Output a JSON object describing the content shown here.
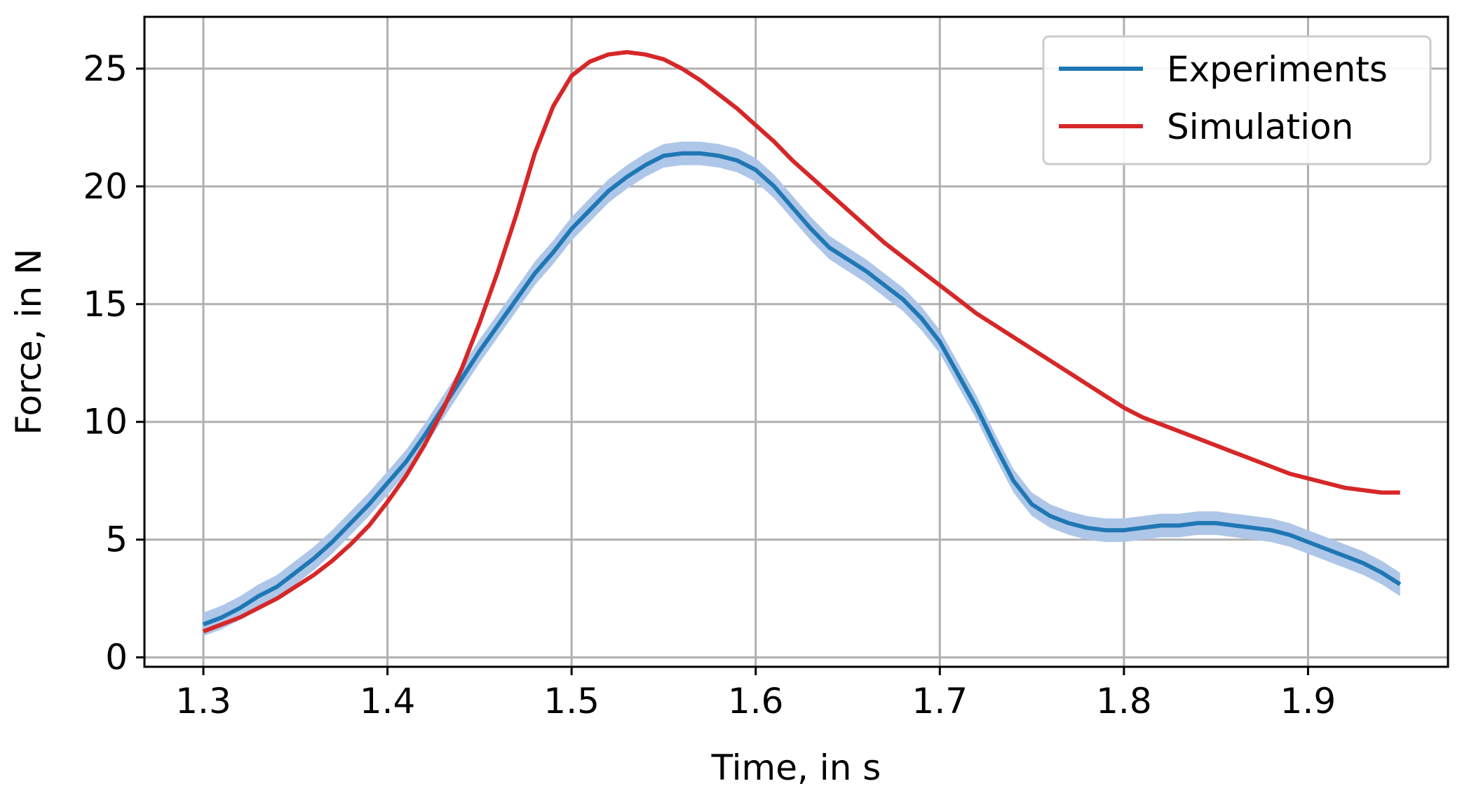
{
  "chart_data": {
    "type": "line",
    "title": "",
    "xlabel": "Time, in s",
    "ylabel": "Force, in N",
    "xlim": [
      1.268,
      1.976
    ],
    "ylim": [
      -0.4,
      27.2
    ],
    "xticks": [
      1.3,
      1.4,
      1.5,
      1.6,
      1.7,
      1.8,
      1.9
    ],
    "xtick_labels": [
      "1.3",
      "1.4",
      "1.5",
      "1.6",
      "1.7",
      "1.8",
      "1.9"
    ],
    "yticks": [
      0,
      5,
      10,
      15,
      20,
      25
    ],
    "ytick_labels": [
      "0",
      "5",
      "10",
      "15",
      "20",
      "25"
    ],
    "grid": true,
    "legend_position": "top-right",
    "series": [
      {
        "name": "Experiments",
        "color": "#1f77b4",
        "band_color": "#aec7e8",
        "band_halfwidth": 0.5,
        "x": [
          1.3,
          1.31,
          1.32,
          1.33,
          1.34,
          1.35,
          1.36,
          1.37,
          1.38,
          1.39,
          1.4,
          1.41,
          1.42,
          1.43,
          1.44,
          1.45,
          1.46,
          1.47,
          1.48,
          1.49,
          1.5,
          1.51,
          1.52,
          1.53,
          1.54,
          1.55,
          1.56,
          1.57,
          1.58,
          1.59,
          1.6,
          1.61,
          1.62,
          1.63,
          1.64,
          1.65,
          1.66,
          1.67,
          1.68,
          1.69,
          1.7,
          1.71,
          1.72,
          1.73,
          1.74,
          1.75,
          1.76,
          1.77,
          1.78,
          1.79,
          1.8,
          1.81,
          1.82,
          1.83,
          1.84,
          1.85,
          1.86,
          1.87,
          1.88,
          1.89,
          1.9,
          1.91,
          1.92,
          1.93,
          1.94,
          1.95
        ],
        "y": [
          1.4,
          1.7,
          2.1,
          2.6,
          3.0,
          3.6,
          4.2,
          4.9,
          5.7,
          6.5,
          7.4,
          8.3,
          9.4,
          10.6,
          11.8,
          13.0,
          14.1,
          15.2,
          16.3,
          17.2,
          18.2,
          19.0,
          19.8,
          20.4,
          20.9,
          21.3,
          21.4,
          21.4,
          21.3,
          21.1,
          20.7,
          20.0,
          19.1,
          18.2,
          17.4,
          16.9,
          16.4,
          15.8,
          15.2,
          14.4,
          13.4,
          12.0,
          10.6,
          9.0,
          7.5,
          6.5,
          6.0,
          5.7,
          5.5,
          5.4,
          5.4,
          5.5,
          5.6,
          5.6,
          5.7,
          5.7,
          5.6,
          5.5,
          5.4,
          5.2,
          4.9,
          4.6,
          4.3,
          4.0,
          3.6,
          3.1
        ]
      },
      {
        "name": "Simulation",
        "color": "#d62728",
        "x": [
          1.3,
          1.31,
          1.32,
          1.33,
          1.34,
          1.35,
          1.36,
          1.37,
          1.38,
          1.39,
          1.4,
          1.41,
          1.42,
          1.43,
          1.44,
          1.45,
          1.46,
          1.47,
          1.48,
          1.49,
          1.5,
          1.51,
          1.52,
          1.53,
          1.54,
          1.55,
          1.56,
          1.57,
          1.58,
          1.59,
          1.6,
          1.61,
          1.62,
          1.63,
          1.64,
          1.65,
          1.66,
          1.67,
          1.68,
          1.69,
          1.7,
          1.71,
          1.72,
          1.73,
          1.74,
          1.75,
          1.76,
          1.77,
          1.78,
          1.79,
          1.8,
          1.81,
          1.82,
          1.83,
          1.84,
          1.85,
          1.86,
          1.87,
          1.88,
          1.89,
          1.9,
          1.91,
          1.92,
          1.93,
          1.94,
          1.95
        ],
        "y": [
          1.1,
          1.4,
          1.7,
          2.1,
          2.5,
          3.0,
          3.5,
          4.1,
          4.8,
          5.6,
          6.6,
          7.7,
          9.0,
          10.5,
          12.2,
          14.2,
          16.4,
          18.8,
          21.4,
          23.4,
          24.7,
          25.3,
          25.6,
          25.7,
          25.6,
          25.4,
          25.0,
          24.5,
          23.9,
          23.3,
          22.6,
          21.9,
          21.1,
          20.4,
          19.7,
          19.0,
          18.3,
          17.6,
          17.0,
          16.4,
          15.8,
          15.2,
          14.6,
          14.1,
          13.6,
          13.1,
          12.6,
          12.1,
          11.6,
          11.1,
          10.6,
          10.2,
          9.9,
          9.6,
          9.3,
          9.0,
          8.7,
          8.4,
          8.1,
          7.8,
          7.6,
          7.4,
          7.2,
          7.1,
          7.0,
          7.0
        ]
      }
    ]
  }
}
